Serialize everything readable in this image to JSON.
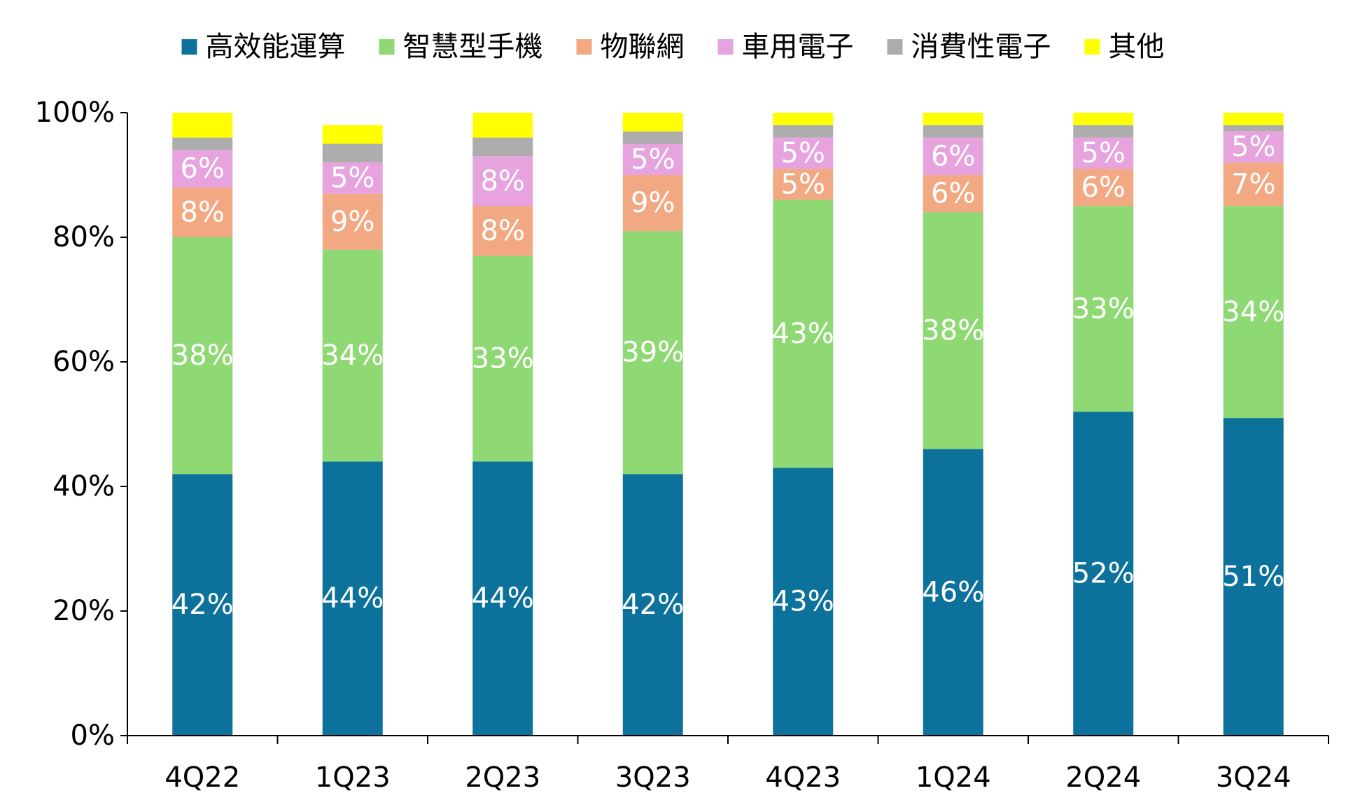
{
  "chart_data": {
    "type": "bar",
    "stacked": true,
    "percent_stacked": true,
    "categories": [
      "4Q22",
      "1Q23",
      "2Q23",
      "3Q23",
      "4Q23",
      "1Q24",
      "2Q24",
      "3Q24"
    ],
    "series": [
      {
        "name": "高效能運算",
        "color": "#0C729C",
        "values": [
          42,
          44,
          44,
          42,
          43,
          46,
          52,
          51
        ],
        "labels": [
          "42%",
          "44%",
          "44%",
          "42%",
          "43%",
          "46%",
          "52%",
          "51%"
        ]
      },
      {
        "name": "智慧型手機",
        "color": "#8FD974",
        "values": [
          38,
          34,
          33,
          39,
          43,
          38,
          33,
          34
        ],
        "labels": [
          "38%",
          "34%",
          "33%",
          "39%",
          "43%",
          "38%",
          "33%",
          "34%"
        ]
      },
      {
        "name": "物聯網",
        "color": "#F2A983",
        "values": [
          8,
          9,
          8,
          9,
          5,
          6,
          6,
          7
        ],
        "labels": [
          "8%",
          "9%",
          "8%",
          "9%",
          "5%",
          "6%",
          "6%",
          "7%"
        ]
      },
      {
        "name": "車用電子",
        "color": "#E6A3DE",
        "values": [
          6,
          5,
          8,
          5,
          5,
          6,
          5,
          5
        ],
        "labels": [
          "6%",
          "5%",
          "8%",
          "5%",
          "5%",
          "6%",
          "5%",
          "5%"
        ]
      },
      {
        "name": "消費性電子",
        "color": "#ADADAD",
        "values": [
          2,
          3,
          3,
          2,
          2,
          2,
          2,
          1
        ],
        "labels": [
          "",
          "",
          "",
          "",
          "",
          "",
          "",
          ""
        ]
      },
      {
        "name": "其他",
        "color": "#FFFF00",
        "values": [
          4,
          3,
          4,
          3,
          2,
          2,
          2,
          2
        ],
        "labels": [
          "",
          "",
          "",
          "",
          "",
          "",
          "",
          ""
        ]
      }
    ],
    "yticks": [
      "0%",
      "20%",
      "40%",
      "60%",
      "80%",
      "100%"
    ],
    "ylim": [
      0,
      100
    ],
    "legend_position": "top",
    "grid": false
  }
}
